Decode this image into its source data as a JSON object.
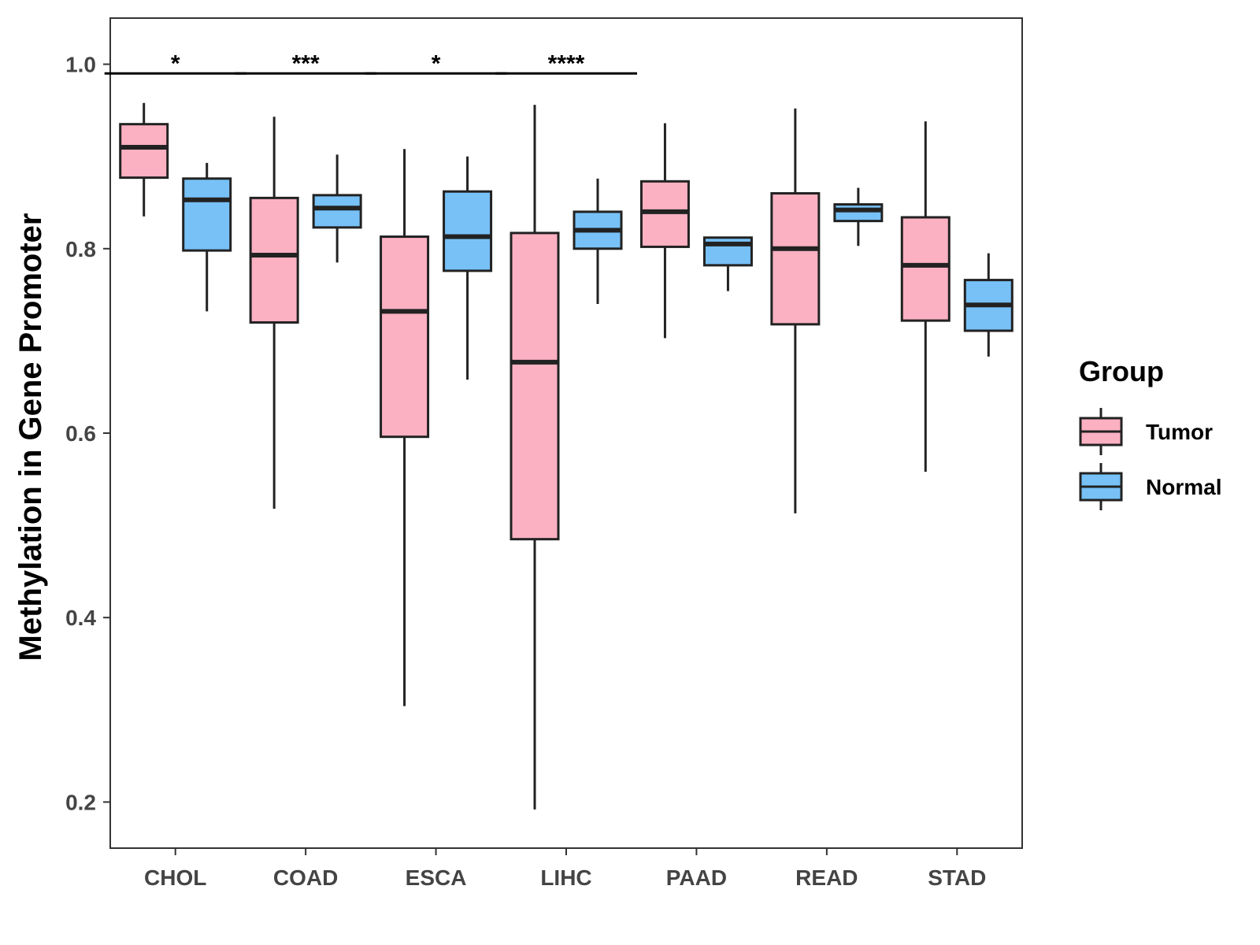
{
  "chart_data": {
    "type": "boxplot",
    "title": "",
    "xlabel": "",
    "ylabel": "Methylation in Gene Promoter",
    "ylim": [
      0.15,
      1.05
    ],
    "yticks": [
      0.2,
      0.4,
      0.6,
      0.8,
      1.0
    ],
    "ytick_labels": [
      "0.2",
      "0.4",
      "0.6",
      "0.8",
      "1.0"
    ],
    "grid": false,
    "legend_position": "right",
    "categories": [
      "CHOL",
      "COAD",
      "ESCA",
      "LIHC",
      "PAAD",
      "READ",
      "STAD"
    ],
    "series": [
      {
        "name": "Tumor",
        "color": "#FBB1C2",
        "boxes": [
          {
            "min": 0.835,
            "q1": 0.877,
            "median": 0.91,
            "q3": 0.935,
            "max": 0.958
          },
          {
            "min": 0.518,
            "q1": 0.72,
            "median": 0.793,
            "q3": 0.855,
            "max": 0.943
          },
          {
            "min": 0.304,
            "q1": 0.596,
            "median": 0.732,
            "q3": 0.813,
            "max": 0.908
          },
          {
            "min": 0.192,
            "q1": 0.485,
            "median": 0.677,
            "q3": 0.817,
            "max": 0.956
          },
          {
            "min": 0.703,
            "q1": 0.802,
            "median": 0.84,
            "q3": 0.873,
            "max": 0.936
          },
          {
            "min": 0.513,
            "q1": 0.718,
            "median": 0.8,
            "q3": 0.86,
            "max": 0.952
          },
          {
            "min": 0.558,
            "q1": 0.722,
            "median": 0.782,
            "q3": 0.834,
            "max": 0.938
          }
        ]
      },
      {
        "name": "Normal",
        "color": "#77C1F7",
        "boxes": [
          {
            "min": 0.732,
            "q1": 0.798,
            "median": 0.853,
            "q3": 0.876,
            "max": 0.893
          },
          {
            "min": 0.785,
            "q1": 0.823,
            "median": 0.844,
            "q3": 0.858,
            "max": 0.902
          },
          {
            "min": 0.658,
            "q1": 0.776,
            "median": 0.813,
            "q3": 0.862,
            "max": 0.9
          },
          {
            "min": 0.74,
            "q1": 0.8,
            "median": 0.82,
            "q3": 0.84,
            "max": 0.876
          },
          {
            "min": 0.754,
            "q1": 0.782,
            "median": 0.805,
            "q3": 0.812,
            "max": 0.812
          },
          {
            "min": 0.803,
            "q1": 0.83,
            "median": 0.842,
            "q3": 0.848,
            "max": 0.866
          },
          {
            "min": 0.683,
            "q1": 0.711,
            "median": 0.739,
            "q3": 0.766,
            "max": 0.795
          }
        ]
      }
    ],
    "significance": [
      {
        "category": "CHOL",
        "label": "*",
        "y": 0.99
      },
      {
        "category": "COAD",
        "label": "***",
        "y": 0.99
      },
      {
        "category": "ESCA",
        "label": "*",
        "y": 0.99
      },
      {
        "category": "LIHC",
        "label": "****",
        "y": 0.99
      }
    ],
    "legend": {
      "title": "Group",
      "entries": [
        "Tumor",
        "Normal"
      ]
    }
  },
  "colors": {
    "tumor": "#FBB1C2",
    "normal": "#77C1F7",
    "outline": "#222222",
    "axis": "#333333"
  }
}
